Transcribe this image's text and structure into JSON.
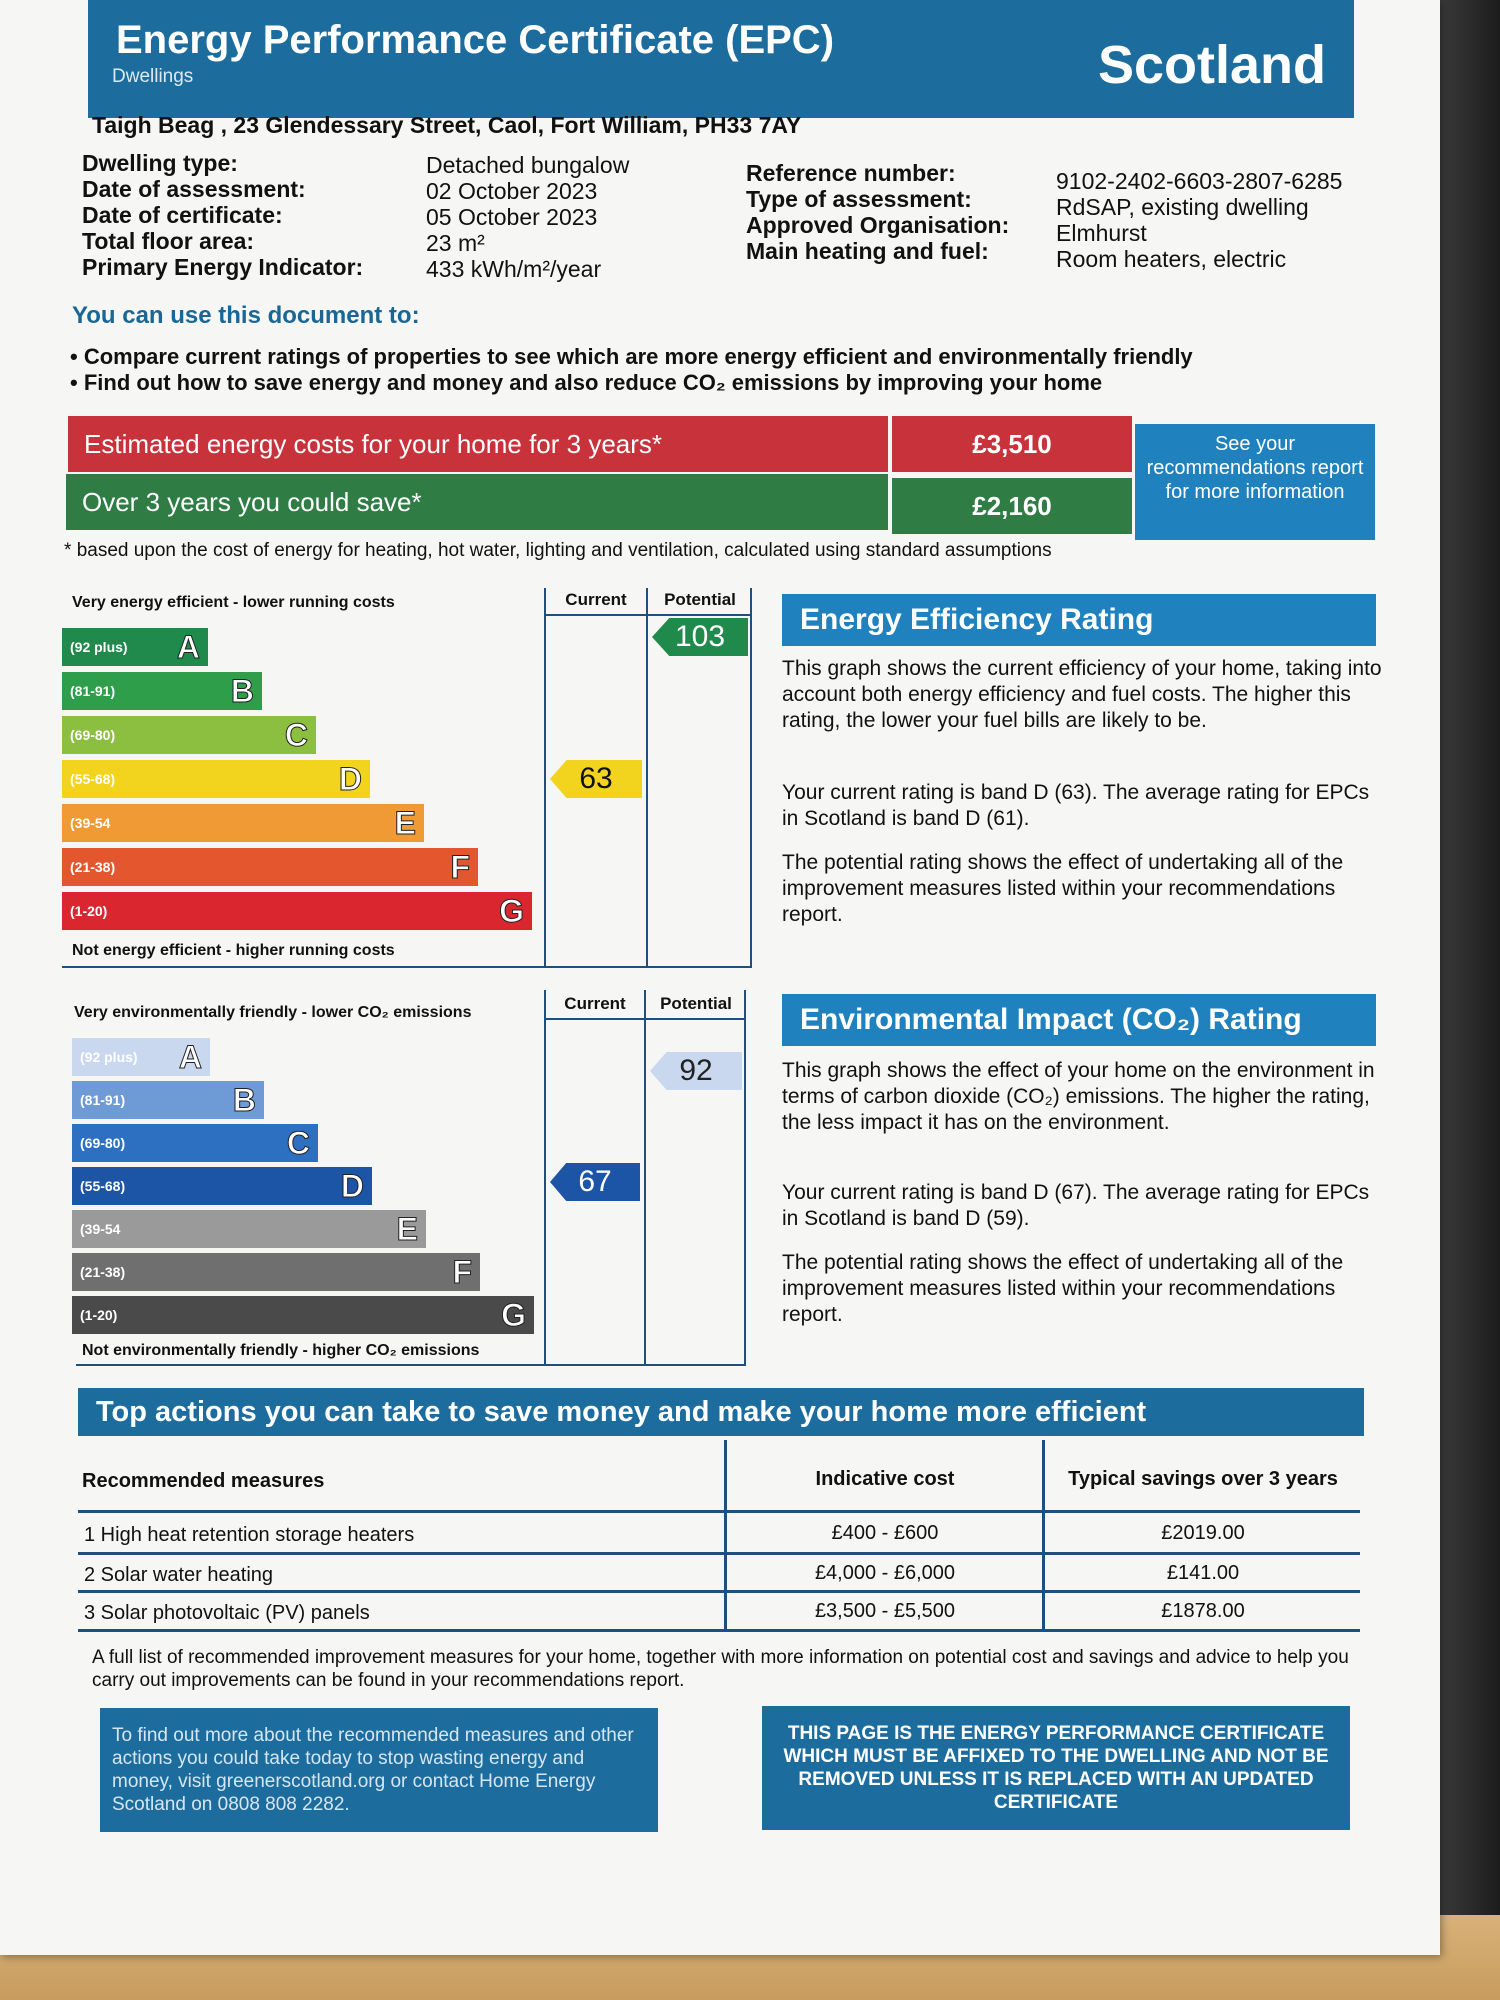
{
  "header": {
    "title": "Energy Performance Certificate (EPC)",
    "subtitle": "Dwellings",
    "region": "Scotland"
  },
  "address": "Taigh Beag , 23 Glendessary Street, Caol, Fort William, PH33 7AY",
  "details_left": [
    {
      "label": "Dwelling type:",
      "value": "Detached bungalow"
    },
    {
      "label": "Date of assessment:",
      "value": "02 October 2023"
    },
    {
      "label": "Date of certificate:",
      "value": "05 October 2023"
    },
    {
      "label": "Total floor area:",
      "value": "23 m²"
    },
    {
      "label": "Primary Energy Indicator:",
      "value": "433 kWh/m²/year"
    }
  ],
  "details_right": [
    {
      "label": "Reference number:",
      "value": "9102-2402-6603-2807-6285"
    },
    {
      "label": "Type of assessment:",
      "value": "RdSAP, existing dwelling"
    },
    {
      "label": "Approved Organisation:",
      "value": "Elmhurst"
    },
    {
      "label": "Main heating and fuel:",
      "value": "Room heaters, electric"
    }
  ],
  "use": {
    "title": "You can use this document to:",
    "bullets": [
      "Compare current ratings of properties to see which are more energy efficient and environmentally friendly",
      "Find out how to save energy and money and also reduce CO₂ emissions by improving your home"
    ]
  },
  "costs": {
    "estimated_label": "Estimated energy costs for your home for 3 years*",
    "estimated_value": "£3,510",
    "save_label": "Over 3 years you could save*",
    "save_value": "£2,160",
    "see_report": "See your recommendations report for more information",
    "footnote": "based upon the cost of energy for heating, hot water, lighting and ventilation, calculated using standard assumptions"
  },
  "energy_chart": {
    "top_caption": "Very energy efficient - lower running costs",
    "bottom_caption": "Not energy efficient - higher running costs",
    "col_current": "Current",
    "col_potential": "Potential",
    "bands": [
      {
        "range": "(92 plus)",
        "letter": "A",
        "color": "#1f8a4c"
      },
      {
        "range": "(81-91)",
        "letter": "B",
        "color": "#2e9e4a"
      },
      {
        "range": "(69-80)",
        "letter": "C",
        "color": "#8cbf3f"
      },
      {
        "range": "(55-68)",
        "letter": "D",
        "color": "#f2d41f"
      },
      {
        "range": "(39-54",
        "letter": "E",
        "color": "#ef9a34"
      },
      {
        "range": "(21-38)",
        "letter": "F",
        "color": "#e4572e"
      },
      {
        "range": "(1-20)",
        "letter": "G",
        "color": "#d9262f"
      }
    ],
    "current": {
      "value": "63",
      "band_index": 3,
      "color": "#f2d41f"
    },
    "potential": {
      "value": "103",
      "band_index": 0,
      "color": "#1f8a4c"
    }
  },
  "env_chart": {
    "top_caption": "Very environmentally friendly - lower CO₂ emissions",
    "bottom_caption": "Not environmentally friendly - higher CO₂ emissions",
    "col_current": "Current",
    "col_potential": "Potential",
    "bands": [
      {
        "range": "(92 plus)",
        "letter": "A",
        "color": "#c9d8ef"
      },
      {
        "range": "(81-91)",
        "letter": "B",
        "color": "#6e9ad6"
      },
      {
        "range": "(69-80)",
        "letter": "C",
        "color": "#2d6fc0"
      },
      {
        "range": "(55-68)",
        "letter": "D",
        "color": "#1d55a6"
      },
      {
        "range": "(39-54",
        "letter": "E",
        "color": "#9a9a9a"
      },
      {
        "range": "(21-38)",
        "letter": "F",
        "color": "#6f6f6f"
      },
      {
        "range": "(1-20)",
        "letter": "G",
        "color": "#4a4a4a"
      }
    ],
    "current": {
      "value": "67",
      "band_index": 3,
      "color": "#1d55a6"
    },
    "potential": {
      "value": "92",
      "band_index": 0,
      "color": "#c9d8ef"
    }
  },
  "energy_rating": {
    "title": "Energy Efficiency Rating",
    "p1": "This graph shows the current efficiency of your home, taking into account both energy efficiency and fuel costs. The higher this rating, the lower your fuel bills are likely to be.",
    "p2": "Your current rating is band D (63). The average rating for EPCs in Scotland is band D (61).",
    "p3": "The potential rating shows the effect of undertaking all of the improvement measures listed within your recommendations report."
  },
  "env_rating": {
    "title": "Environmental Impact (CO₂) Rating",
    "p1": "This graph shows the effect of your home on the environment in terms of carbon dioxide (CO₂) emissions. The higher the rating, the less impact it has on the environment.",
    "p2": "Your current rating is band D (67). The average rating for EPCs in Scotland is band D (59).",
    "p3": "The potential rating shows the effect of undertaking all of the improvement measures listed within your recommendations report."
  },
  "actions": {
    "title": "Top actions you can take to save money and make your home more efficient",
    "headers": [
      "Recommended measures",
      "Indicative cost",
      "Typical savings over 3 years"
    ],
    "rows": [
      [
        "1 High heat retention storage heaters",
        "£400 - £600",
        "£2019.00"
      ],
      [
        "2 Solar water heating",
        "£4,000 - £6,000",
        "£141.00"
      ],
      [
        "3 Solar photovoltaic (PV) panels",
        "£3,500 - £5,500",
        "£1878.00"
      ]
    ],
    "note": "A full list of recommended improvement measures for your home, together with more information on potential cost and savings and advice to help you carry out improvements can be found in your recommendations report."
  },
  "footer": {
    "left": "To find out more about the recommended measures and other actions you could take today to stop wasting energy and money, visit greenerscotland.org or contact Home Energy Scotland on 0808 808 2282.",
    "right": "THIS PAGE IS THE ENERGY PERFORMANCE CERTIFICATE WHICH MUST BE AFFIXED TO THE DWELLING AND NOT BE REMOVED UNLESS IT IS REPLACED WITH AN UPDATED CERTIFICATE"
  }
}
